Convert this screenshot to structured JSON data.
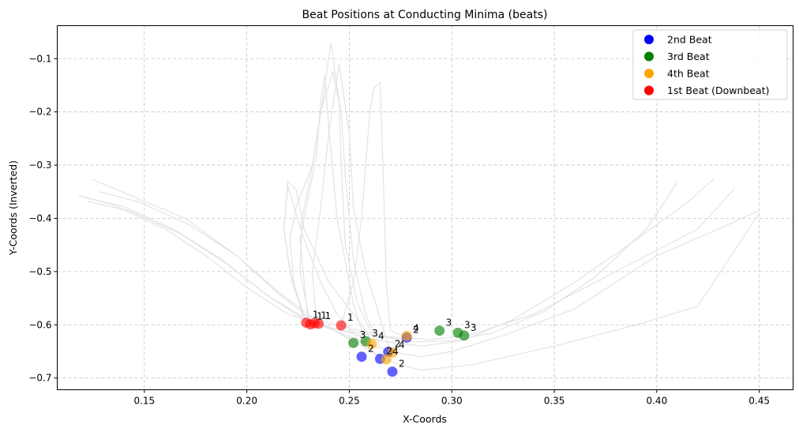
{
  "chart_data": {
    "type": "scatter",
    "title": "Beat Positions at Conducting Minima (beats)",
    "xlabel": "X-Coords",
    "ylabel": "Y-Coords (Inverted)",
    "xlim": [
      0.1075,
      0.4665
    ],
    "ylim": [
      -0.722,
      -0.038
    ],
    "xticks": [
      0.15,
      0.2,
      0.25,
      0.3,
      0.35,
      0.4,
      0.45
    ],
    "xtick_labels": [
      "0.15",
      "0.20",
      "0.25",
      "0.30",
      "0.35",
      "0.40",
      "0.45"
    ],
    "yticks": [
      -0.1,
      -0.2,
      -0.3,
      -0.4,
      -0.5,
      -0.6,
      -0.7
    ],
    "ytick_labels": [
      "−0.1",
      "−0.2",
      "−0.3",
      "−0.4",
      "−0.5",
      "−0.6",
      "−0.7"
    ],
    "grid": true,
    "legend_position": "top-right",
    "trajectory_color": "#e3e3e3",
    "trajectories": [
      [
        [
          0.118,
          -0.357
        ],
        [
          0.135,
          -0.375
        ],
        [
          0.16,
          -0.42
        ],
        [
          0.18,
          -0.47
        ],
        [
          0.2,
          -0.53
        ],
        [
          0.22,
          -0.58
        ],
        [
          0.24,
          -0.605
        ],
        [
          0.262,
          -0.62
        ],
        [
          0.282,
          -0.632
        ],
        [
          0.3,
          -0.63
        ],
        [
          0.32,
          -0.615
        ],
        [
          0.345,
          -0.575
        ],
        [
          0.37,
          -0.51
        ],
        [
          0.395,
          -0.42
        ],
        [
          0.41,
          -0.333
        ]
      ],
      [
        [
          0.122,
          -0.368
        ],
        [
          0.142,
          -0.385
        ],
        [
          0.168,
          -0.43
        ],
        [
          0.19,
          -0.485
        ],
        [
          0.212,
          -0.55
        ],
        [
          0.228,
          -0.59
        ],
        [
          0.245,
          -0.61
        ],
        [
          0.265,
          -0.63
        ],
        [
          0.285,
          -0.64
        ],
        [
          0.305,
          -0.63
        ],
        [
          0.33,
          -0.59
        ],
        [
          0.36,
          -0.52
        ],
        [
          0.39,
          -0.44
        ],
        [
          0.415,
          -0.37
        ],
        [
          0.428,
          -0.325
        ]
      ],
      [
        [
          0.125,
          -0.327
        ],
        [
          0.145,
          -0.36
        ],
        [
          0.17,
          -0.4
        ],
        [
          0.195,
          -0.47
        ],
        [
          0.215,
          -0.54
        ],
        [
          0.23,
          -0.585
        ],
        [
          0.248,
          -0.605
        ],
        [
          0.268,
          -0.622
        ],
        [
          0.29,
          -0.628
        ],
        [
          0.31,
          -0.618
        ],
        [
          0.34,
          -0.58
        ],
        [
          0.38,
          -0.5
        ],
        [
          0.42,
          -0.42
        ],
        [
          0.438,
          -0.344
        ]
      ],
      [
        [
          0.12,
          -0.36
        ],
        [
          0.14,
          -0.378
        ],
        [
          0.165,
          -0.422
        ],
        [
          0.188,
          -0.478
        ],
        [
          0.21,
          -0.545
        ],
        [
          0.232,
          -0.595
        ],
        [
          0.252,
          -0.625
        ],
        [
          0.27,
          -0.65
        ],
        [
          0.285,
          -0.66
        ],
        [
          0.3,
          -0.65
        ],
        [
          0.325,
          -0.62
        ],
        [
          0.36,
          -0.57
        ],
        [
          0.4,
          -0.47
        ],
        [
          0.43,
          -0.42
        ],
        [
          0.45,
          -0.385
        ]
      ],
      [
        [
          0.128,
          -0.35
        ],
        [
          0.148,
          -0.37
        ],
        [
          0.172,
          -0.412
        ],
        [
          0.195,
          -0.47
        ],
        [
          0.216,
          -0.54
        ],
        [
          0.234,
          -0.592
        ],
        [
          0.256,
          -0.64
        ],
        [
          0.272,
          -0.672
        ],
        [
          0.285,
          -0.685
        ],
        [
          0.31,
          -0.675
        ],
        [
          0.35,
          -0.64
        ],
        [
          0.39,
          -0.6
        ],
        [
          0.42,
          -0.565
        ],
        [
          0.45,
          -0.39
        ]
      ],
      [
        [
          0.229,
          -0.597
        ],
        [
          0.222,
          -0.52
        ],
        [
          0.218,
          -0.42
        ],
        [
          0.22,
          -0.33
        ],
        [
          0.224,
          -0.345
        ],
        [
          0.228,
          -0.42
        ],
        [
          0.24,
          -0.52
        ],
        [
          0.256,
          -0.6
        ],
        [
          0.262,
          -0.64
        ]
      ],
      [
        [
          0.231,
          -0.599
        ],
        [
          0.226,
          -0.5
        ],
        [
          0.227,
          -0.4
        ],
        [
          0.232,
          -0.3
        ],
        [
          0.237,
          -0.18
        ],
        [
          0.241,
          -0.07
        ],
        [
          0.245,
          -0.18
        ],
        [
          0.246,
          -0.3
        ],
        [
          0.248,
          -0.45
        ],
        [
          0.254,
          -0.56
        ],
        [
          0.262,
          -0.625
        ]
      ],
      [
        [
          0.234,
          -0.597
        ],
        [
          0.232,
          -0.5
        ],
        [
          0.236,
          -0.38
        ],
        [
          0.24,
          -0.24
        ],
        [
          0.245,
          -0.11
        ],
        [
          0.25,
          -0.24
        ],
        [
          0.252,
          -0.38
        ],
        [
          0.258,
          -0.5
        ],
        [
          0.266,
          -0.6
        ],
        [
          0.27,
          -0.652
        ]
      ],
      [
        [
          0.228,
          -0.598
        ],
        [
          0.223,
          -0.52
        ],
        [
          0.221,
          -0.44
        ],
        [
          0.224,
          -0.38
        ],
        [
          0.232,
          -0.3
        ],
        [
          0.236,
          -0.2
        ],
        [
          0.242,
          -0.125
        ],
        [
          0.246,
          -0.2
        ],
        [
          0.248,
          -0.32
        ],
        [
          0.252,
          -0.48
        ],
        [
          0.258,
          -0.58
        ],
        [
          0.265,
          -0.64
        ]
      ],
      [
        [
          0.246,
          -0.601
        ],
        [
          0.252,
          -0.52
        ],
        [
          0.256,
          -0.4
        ],
        [
          0.258,
          -0.3
        ],
        [
          0.26,
          -0.2
        ],
        [
          0.262,
          -0.155
        ],
        [
          0.265,
          -0.145
        ],
        [
          0.266,
          -0.25
        ],
        [
          0.267,
          -0.38
        ],
        [
          0.268,
          -0.52
        ],
        [
          0.27,
          -0.61
        ],
        [
          0.278,
          -0.625
        ]
      ],
      [
        [
          0.23,
          -0.6
        ],
        [
          0.228,
          -0.52
        ],
        [
          0.226,
          -0.44
        ],
        [
          0.23,
          -0.36
        ],
        [
          0.234,
          -0.28
        ],
        [
          0.236,
          -0.18
        ],
        [
          0.238,
          -0.13
        ],
        [
          0.24,
          -0.23
        ],
        [
          0.244,
          -0.4
        ],
        [
          0.252,
          -0.56
        ],
        [
          0.258,
          -0.635
        ]
      ],
      [
        [
          0.229,
          -0.596
        ],
        [
          0.221,
          -0.5
        ],
        [
          0.218,
          -0.42
        ],
        [
          0.22,
          -0.34
        ],
        [
          0.228,
          -0.44
        ],
        [
          0.236,
          -0.52
        ],
        [
          0.244,
          -0.58
        ],
        [
          0.255,
          -0.63
        ],
        [
          0.265,
          -0.662
        ]
      ]
    ],
    "series": [
      {
        "name": "2nd Beat",
        "color": "#0000ff",
        "label": "2",
        "points": [
          [
            0.256,
            -0.66
          ],
          [
            0.265,
            -0.664
          ],
          [
            0.271,
            -0.688
          ],
          [
            0.269,
            -0.651
          ],
          [
            0.278,
            -0.624
          ]
        ]
      },
      {
        "name": "3rd Beat",
        "color": "#008000",
        "label": "3",
        "points": [
          [
            0.252,
            -0.634
          ],
          [
            0.258,
            -0.631
          ],
          [
            0.294,
            -0.611
          ],
          [
            0.303,
            -0.615
          ],
          [
            0.306,
            -0.62
          ]
        ]
      },
      {
        "name": "4th Beat",
        "color": "#ffa500",
        "label": "4",
        "points": [
          [
            0.261,
            -0.636
          ],
          [
            0.268,
            -0.665
          ],
          [
            0.271,
            -0.652
          ],
          [
            0.278,
            -0.621
          ]
        ]
      },
      {
        "name": "1st Beat (Downbeat)",
        "color": "#ff0000",
        "label": "1",
        "points": [
          [
            0.229,
            -0.596
          ],
          [
            0.231,
            -0.599
          ],
          [
            0.233,
            -0.597
          ],
          [
            0.235,
            -0.598
          ],
          [
            0.246,
            -0.601
          ]
        ]
      }
    ],
    "legend": [
      "2nd Beat",
      "3rd Beat",
      "4th Beat",
      "1st Beat (Downbeat)"
    ]
  }
}
